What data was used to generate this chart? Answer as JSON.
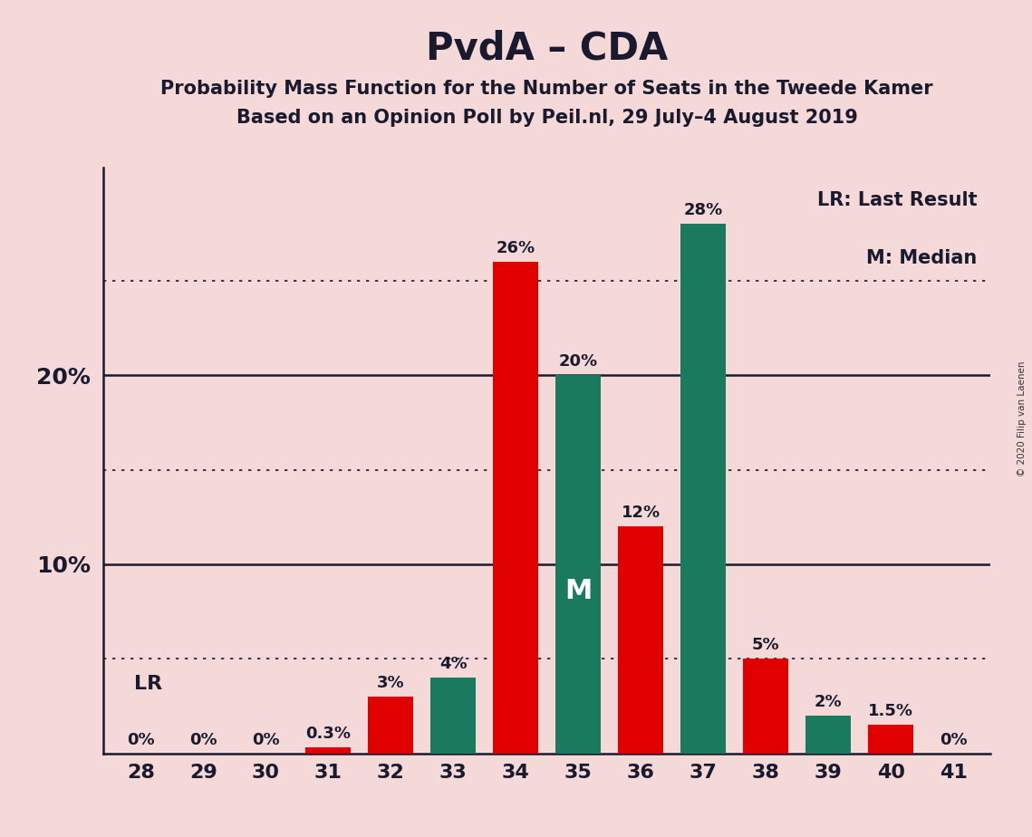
{
  "title": "PvdA – CDA",
  "subtitle1": "Probability Mass Function for the Number of Seats in the Tweede Kamer",
  "subtitle2": "Based on an Opinion Poll by Peil.nl, 29 July–4 August 2019",
  "copyright": "© 2020 Filip van Laenen",
  "background_color": "#f5d9d9",
  "seats": [
    28,
    29,
    30,
    31,
    32,
    33,
    34,
    35,
    36,
    37,
    38,
    39,
    40,
    41
  ],
  "pvda_values": [
    0,
    0,
    0,
    0.3,
    3,
    0,
    26,
    0,
    12,
    0,
    5,
    0,
    1.5,
    0
  ],
  "cda_values": [
    0,
    0,
    0,
    0,
    0,
    4,
    0,
    20,
    0,
    28,
    0,
    2,
    0,
    0
  ],
  "pvda_color": "#e00000",
  "cda_color": "#1a7a5e",
  "label_color": "#1a1a2e",
  "white_label_color": "#ffffff",
  "lr_seat": 28,
  "median_seat": 35,
  "ylim": [
    0,
    31
  ],
  "solid_yticks": [
    10,
    20
  ],
  "dotted_yticks": [
    5,
    15,
    25
  ],
  "bar_width": 0.72,
  "legend_text1": "LR: Last Result",
  "legend_text2": "M: Median",
  "lr_label": "LR",
  "median_label": "M",
  "title_fontsize": 30,
  "subtitle_fontsize": 15,
  "label_fontsize": 13,
  "ytick_fontsize": 18,
  "xtick_fontsize": 16
}
